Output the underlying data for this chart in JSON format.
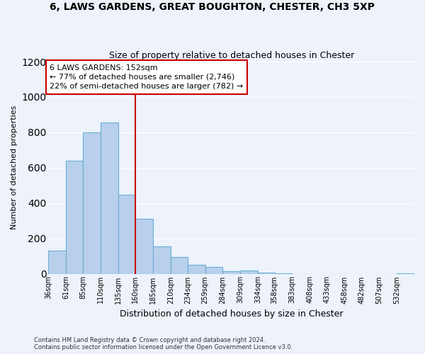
{
  "title1": "6, LAWS GARDENS, GREAT BOUGHTON, CHESTER, CH3 5XP",
  "title2": "Size of property relative to detached houses in Chester",
  "xlabel": "Distribution of detached houses by size in Chester",
  "ylabel": "Number of detached properties",
  "footer1": "Contains HM Land Registry data © Crown copyright and database right 2024.",
  "footer2": "Contains public sector information licensed under the Open Government Licence v3.0.",
  "bin_labels": [
    "36sqm",
    "61sqm",
    "85sqm",
    "110sqm",
    "135sqm",
    "160sqm",
    "185sqm",
    "210sqm",
    "234sqm",
    "259sqm",
    "284sqm",
    "309sqm",
    "334sqm",
    "358sqm",
    "383sqm",
    "408sqm",
    "433sqm",
    "458sqm",
    "482sqm",
    "507sqm",
    "532sqm"
  ],
  "bar_heights": [
    130,
    640,
    800,
    855,
    445,
    310,
    155,
    93,
    52,
    40,
    15,
    20,
    8,
    3,
    0,
    0,
    0,
    0,
    0,
    0,
    3
  ],
  "bar_color": "#b8d0eb",
  "bar_edge_color": "#6aaed6",
  "property_line_x": 160,
  "bin_edges": [
    36,
    61,
    85,
    110,
    135,
    160,
    185,
    210,
    234,
    259,
    284,
    309,
    334,
    358,
    383,
    408,
    433,
    458,
    482,
    507,
    532,
    557
  ],
  "annotation_title": "6 LAWS GARDENS: 152sqm",
  "annotation_line1": "← 77% of detached houses are smaller (2,746)",
  "annotation_line2": "22% of semi-detached houses are larger (782) →",
  "vline_color": "#cc0000",
  "annotation_box_color": "#ffffff",
  "annotation_box_edge": "#cc0000",
  "ylim": [
    0,
    1200
  ],
  "yticks": [
    0,
    200,
    400,
    600,
    800,
    1000,
    1200
  ],
  "background_color": "#edf2fb",
  "grid_color": "#ffffff"
}
